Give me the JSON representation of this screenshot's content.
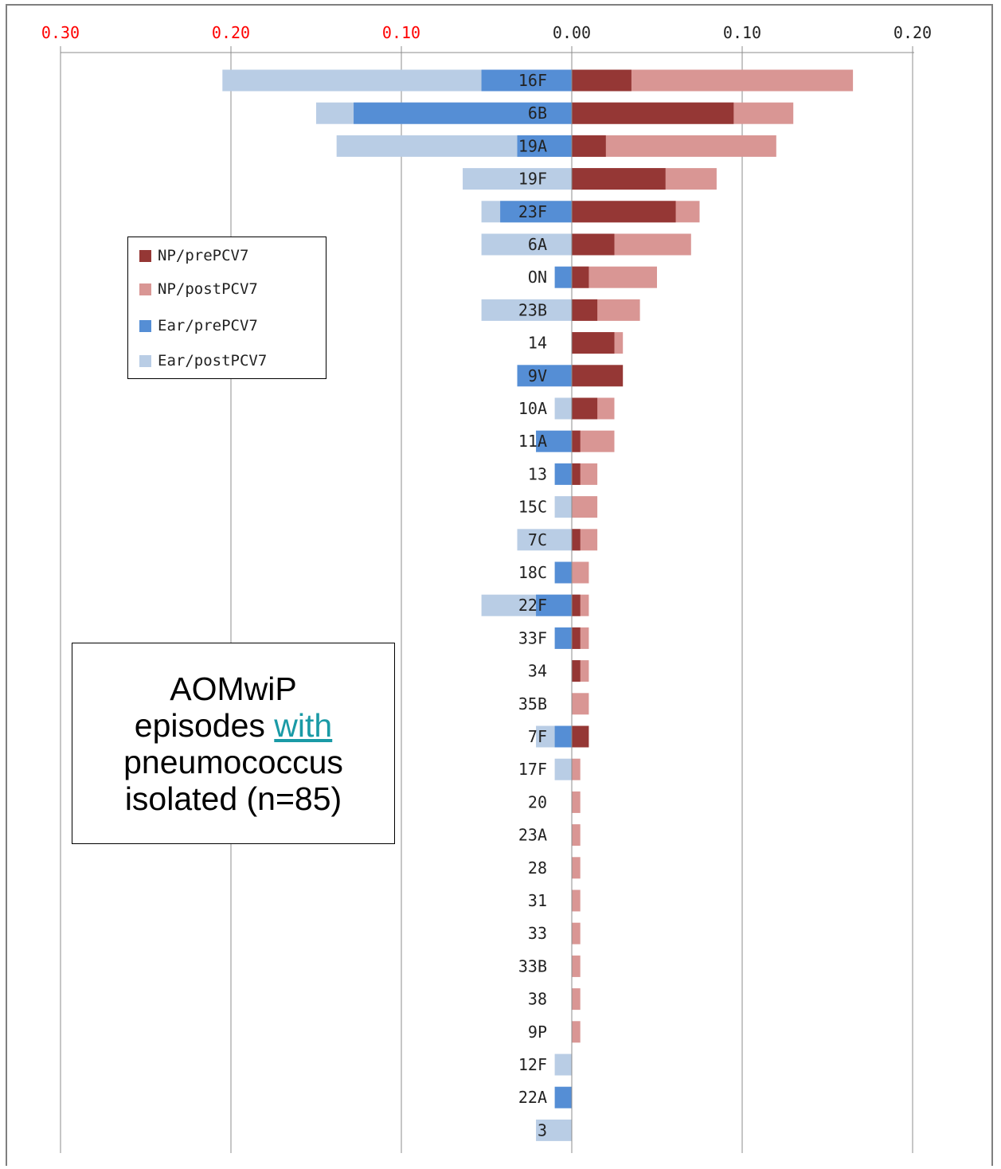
{
  "chart_data": {
    "type": "bar",
    "orientation": "horizontal-diverging",
    "x_axis": {
      "ticks": [
        -0.3,
        -0.2,
        -0.1,
        0.0,
        0.1,
        0.2
      ],
      "tick_labels": [
        "0.30",
        "0.20",
        "0.10",
        "0.00",
        "0.10",
        "0.20"
      ],
      "negative_label_color": "#ff0000",
      "positive_label_color": "#222222",
      "range": [
        -0.3,
        0.2
      ]
    },
    "grid": true,
    "categories": [
      "16F",
      "6B",
      "19A",
      "19F",
      "23F",
      "6A",
      "ON",
      "23B",
      "14",
      "9V",
      "10A",
      "11A",
      "13",
      "15C",
      "7C",
      "18C",
      "22F",
      "33F",
      "34",
      "35B",
      "7F",
      "17F",
      "20",
      "23A",
      "28",
      "31",
      "33",
      "33B",
      "38",
      "9P",
      "12F",
      "22A",
      "3"
    ],
    "series": [
      {
        "name": "NP/prePCV7",
        "color": "#953735",
        "values": [
          0.035,
          0.095,
          0.02,
          0.055,
          0.061,
          0.025,
          0.01,
          0.015,
          0.025,
          0.03,
          0.015,
          0.005,
          0.005,
          0.0,
          0.005,
          0.0,
          0.005,
          0.005,
          0.005,
          0.0,
          0.01,
          0.0,
          0.0,
          0.0,
          0.0,
          0.0,
          0.0,
          0.0,
          0.0,
          0.0,
          0.0,
          0.0,
          0.0
        ]
      },
      {
        "name": "NP/postPCV7",
        "color": "#d99694",
        "values": [
          0.165,
          0.13,
          0.12,
          0.085,
          0.075,
          0.07,
          0.05,
          0.04,
          0.03,
          0.0,
          0.025,
          0.025,
          0.015,
          0.015,
          0.015,
          0.01,
          0.01,
          0.01,
          0.01,
          0.01,
          0.0,
          0.005,
          0.005,
          0.005,
          0.005,
          0.005,
          0.005,
          0.005,
          0.005,
          0.005,
          0.0,
          0.0,
          0.0
        ]
      },
      {
        "name": "Ear/prePCV7",
        "color": "#558ed5",
        "values": [
          0.053,
          0.128,
          0.032,
          0.0,
          0.042,
          0.0,
          0.01,
          0.0,
          0.0,
          0.032,
          0.0,
          0.021,
          0.01,
          0.0,
          0.0,
          0.01,
          0.021,
          0.01,
          0.0,
          0.0,
          0.01,
          0.0,
          0.0,
          0.0,
          0.0,
          0.0,
          0.0,
          0.0,
          0.0,
          0.0,
          0.0,
          0.01,
          0.0
        ]
      },
      {
        "name": "Ear/postPCV7",
        "color": "#b9cde5",
        "values": [
          0.205,
          0.15,
          0.138,
          0.064,
          0.053,
          0.053,
          0.0,
          0.053,
          0.0,
          0.0,
          0.01,
          0.0,
          0.0,
          0.01,
          0.032,
          0.0,
          0.053,
          0.0,
          0.0,
          0.0,
          0.021,
          0.01,
          0.0,
          0.0,
          0.0,
          0.0,
          0.0,
          0.0,
          0.0,
          0.0,
          0.01,
          0.0,
          0.021
        ]
      }
    ],
    "legend_position": "left"
  },
  "annotation": {
    "line1": "AOMwiP",
    "line2_prefix": "episodes ",
    "line2_link": "with",
    "line3": "pneumococcus",
    "line4": "isolated (n=85)"
  }
}
